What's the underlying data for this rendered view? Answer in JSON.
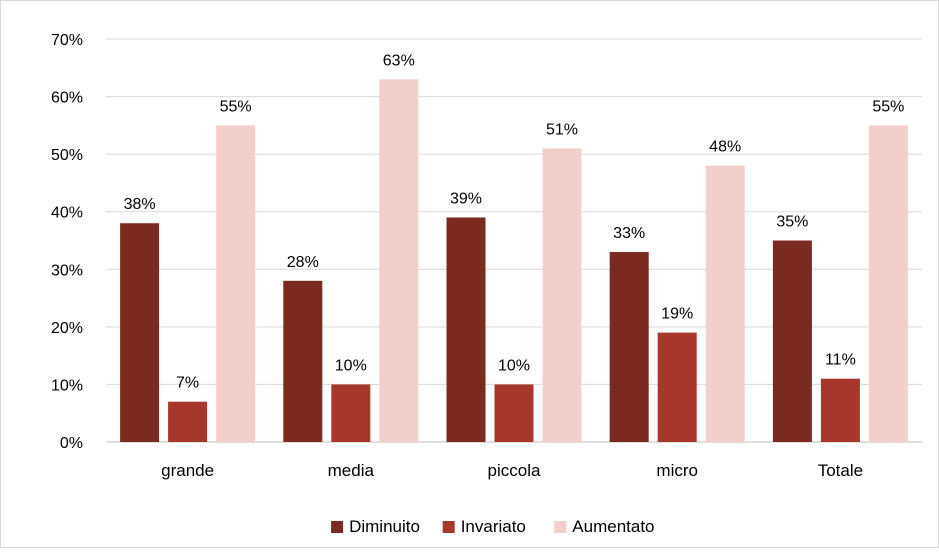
{
  "chart_data": {
    "type": "bar",
    "categories": [
      "grande",
      "media",
      "piccola",
      "micro",
      "Totale"
    ],
    "series": [
      {
        "name": "Diminuito",
        "color": "#7b2a1f",
        "values": [
          38,
          28,
          39,
          33,
          35
        ],
        "labels": [
          "38%",
          "28%",
          "39%",
          "33%",
          "35%"
        ]
      },
      {
        "name": "Invariato",
        "color": "#a8372b",
        "values": [
          7,
          10,
          10,
          19,
          11
        ],
        "labels": [
          "7%",
          "10%",
          "10%",
          "19%",
          "11%"
        ]
      },
      {
        "name": "Aumentato",
        "color": "#f3cfcb",
        "values": [
          55,
          63,
          51,
          48,
          55
        ],
        "labels": [
          "55%",
          "63%",
          "51%",
          "48%",
          "55%"
        ]
      }
    ],
    "y_ticks": [
      "0%",
      "10%",
      "20%",
      "30%",
      "40%",
      "50%",
      "60%",
      "70%"
    ],
    "ylim": [
      0,
      70
    ],
    "grid": true,
    "legend_position": "bottom"
  }
}
